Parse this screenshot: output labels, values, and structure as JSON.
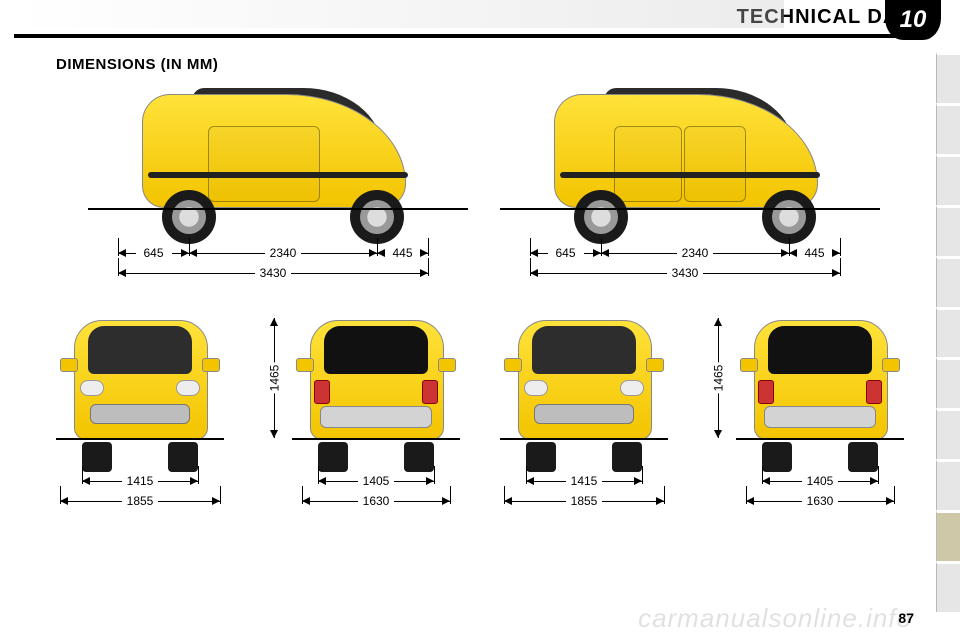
{
  "chapter": {
    "number": "10",
    "title": "TECHNICAL DATA"
  },
  "section": {
    "title": "DIMENSIONS (IN MM)"
  },
  "page_number": "87",
  "watermark": "carmanualsonline.info",
  "tabs": {
    "count": 11,
    "active_index": 9
  },
  "dimensions": {
    "side": {
      "front_overhang": "645",
      "wheelbase": "2340",
      "rear_overhang": "445",
      "overall_length": "3430"
    },
    "front": {
      "track": "1415",
      "overall_width_mirrors": "1855"
    },
    "rear": {
      "track": "1405",
      "overall_width_mirrors": "1630"
    },
    "height": "1465"
  },
  "car": {
    "body_color": "#f8d20c",
    "body_color_dark": "#e8b900",
    "glass_color": "#2b2b2b"
  }
}
